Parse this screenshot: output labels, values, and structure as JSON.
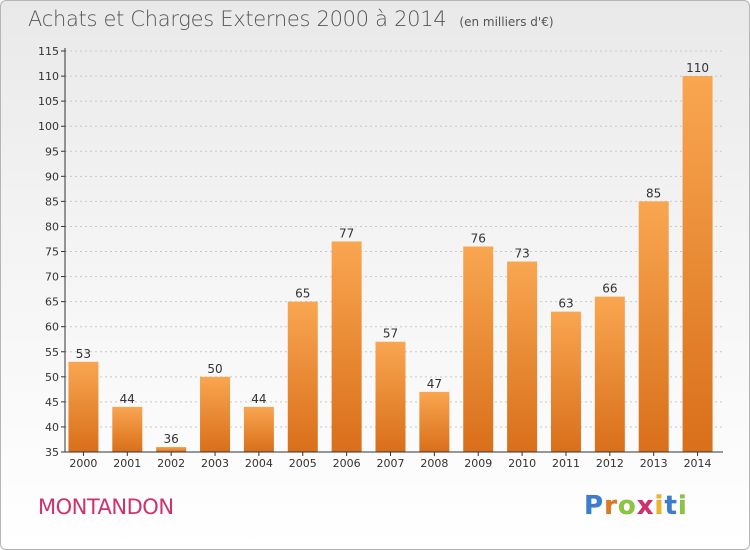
{
  "header": {
    "title": "Achats et Charges Externes 2000 à 2014",
    "unit": "(en milliers d'€)"
  },
  "footer": {
    "commune": "MONTANDON",
    "logo_text": "Proxiti",
    "logo_colors": [
      "#3a7fcf",
      "#e07a1f",
      "#8cc63f",
      "#d0306e",
      "#f2b51b",
      "#3a7fcf",
      "#8cc63f"
    ]
  },
  "colors": {
    "bar_light": "#f9a651",
    "bar_dark": "#d96f1a",
    "grid": "#c8c8c8",
    "axis": "#333333",
    "text": "#333333"
  },
  "chart_data": {
    "type": "bar",
    "title": "Achats et Charges Externes 2000 à 2014",
    "unit": "(en milliers d'€)",
    "categories": [
      "2000",
      "2001",
      "2002",
      "2003",
      "2004",
      "2005",
      "2006",
      "2007",
      "2008",
      "2009",
      "2010",
      "2011",
      "2012",
      "2013",
      "2014"
    ],
    "values": [
      53,
      44,
      36,
      50,
      44,
      65,
      77,
      57,
      47,
      76,
      73,
      63,
      66,
      85,
      110
    ],
    "ylim": [
      35,
      115
    ],
    "ytick_step": 5,
    "grid": true
  }
}
